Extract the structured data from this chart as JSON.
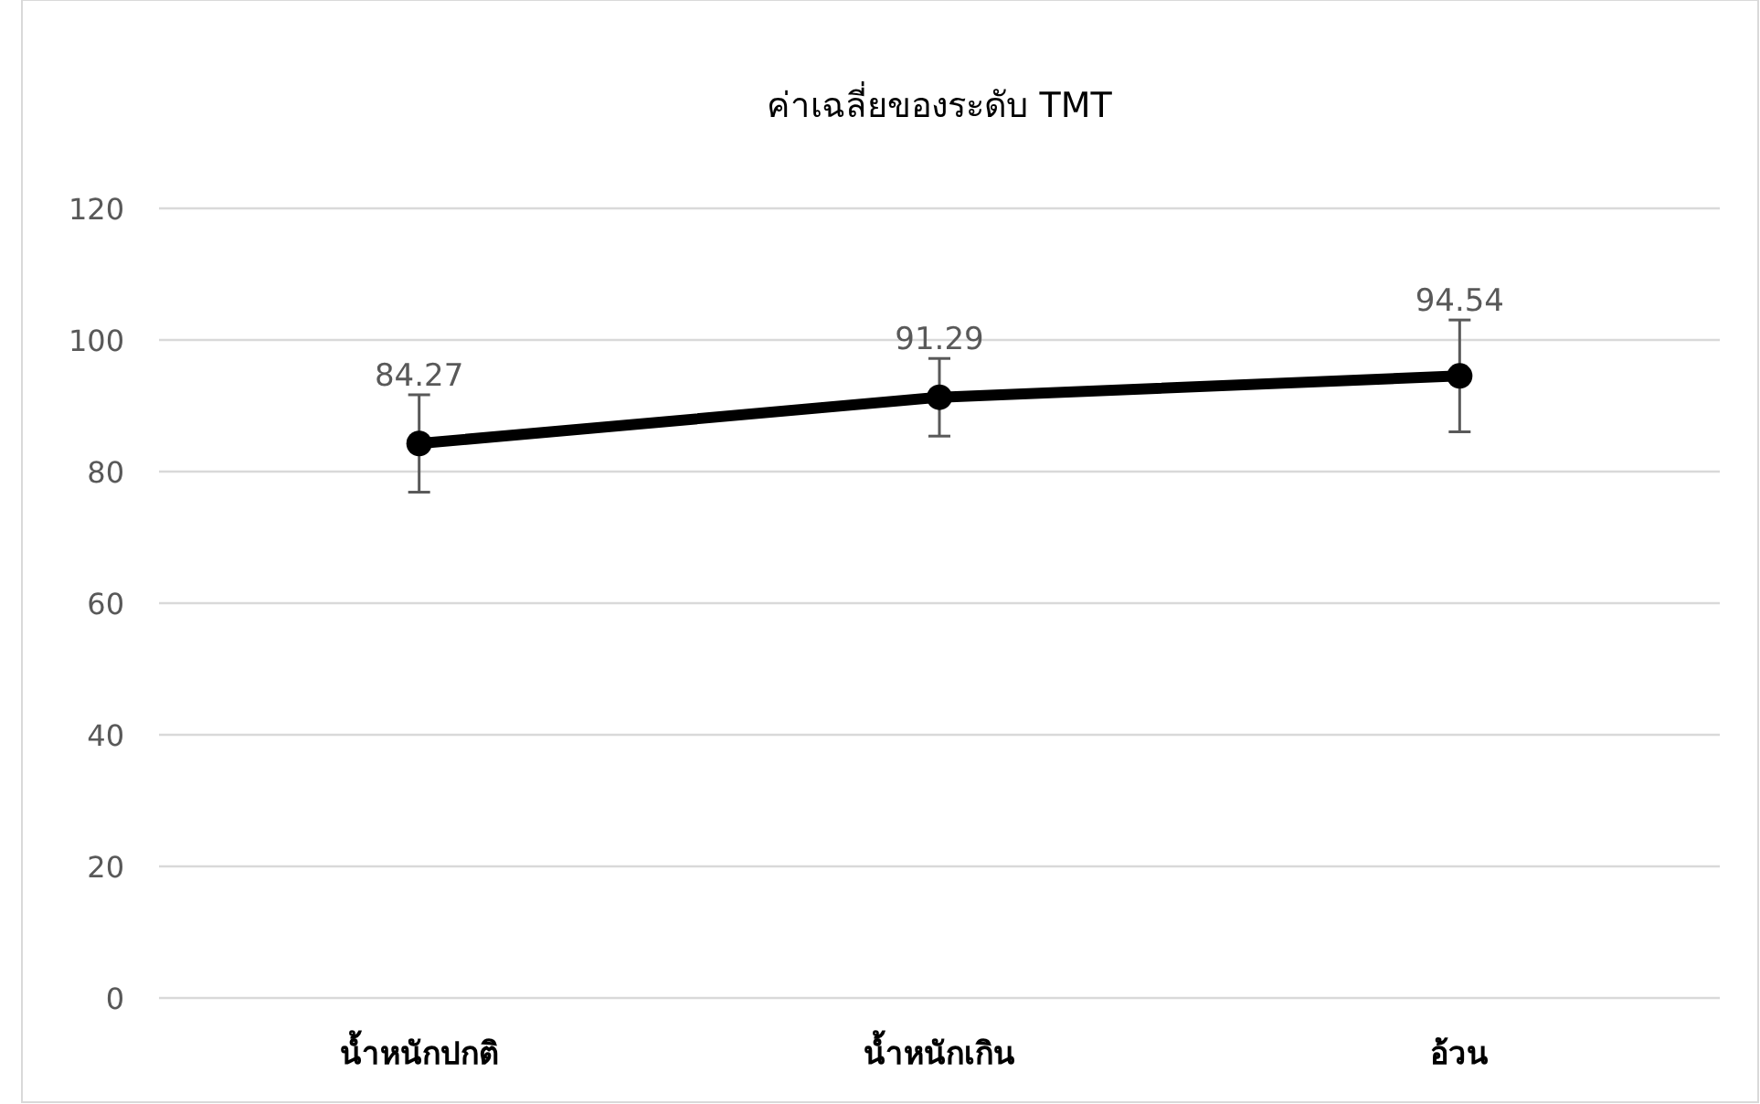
{
  "chart_data": {
    "type": "line",
    "title": "ค่าเฉลี่ยของระดับ TMT",
    "categories": [
      "น้ำหนักปกติ",
      "น้ำหนักเกิน",
      "อ้วน"
    ],
    "series": [
      {
        "color": "#000000",
        "values": [
          84.27,
          91.29,
          94.54
        ],
        "errors": [
          7.4,
          5.9,
          8.5
        ]
      }
    ],
    "ylim": [
      0,
      120
    ],
    "yticks": [
      0,
      20,
      40,
      60,
      80,
      100,
      120
    ],
    "grid": "y",
    "marker": "circle",
    "line_style": "solid",
    "data_labels": true
  }
}
